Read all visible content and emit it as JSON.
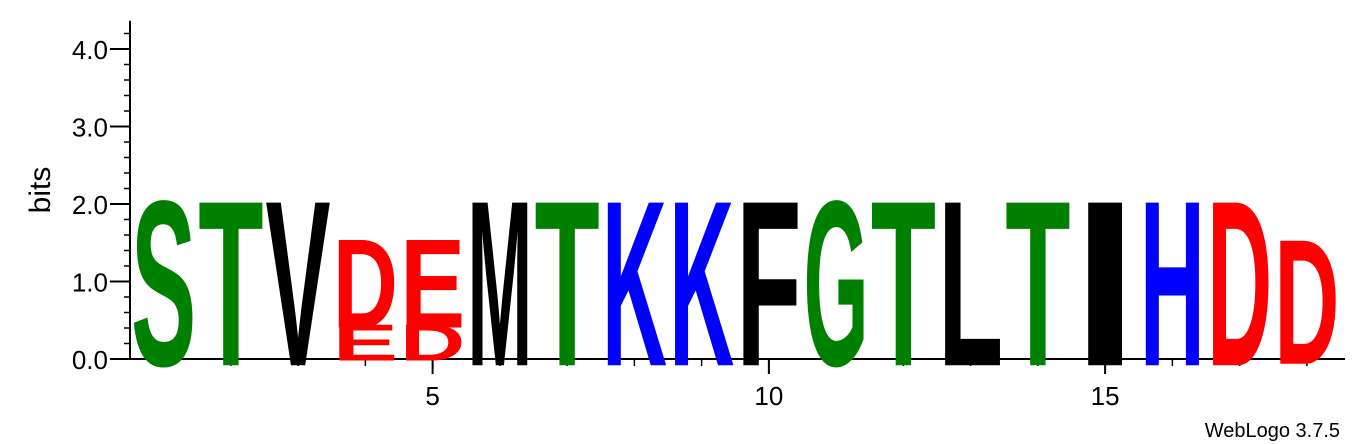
{
  "chart_data": {
    "type": "sequence-logo",
    "ylabel": "bits",
    "ylim": [
      0,
      4.3
    ],
    "xlim": [
      0.5,
      18.5
    ],
    "y_ticks": [
      {
        "value": 0,
        "label": "0.0"
      },
      {
        "value": 1,
        "label": "1.0"
      },
      {
        "value": 2,
        "label": "2.0"
      },
      {
        "value": 3,
        "label": "3.0"
      },
      {
        "value": 4,
        "label": "4.0"
      }
    ],
    "x_ticks": [
      {
        "value": 5,
        "label": "5"
      },
      {
        "value": 10,
        "label": "10"
      },
      {
        "value": 15,
        "label": "15"
      }
    ],
    "colors": {
      "green": "#008000",
      "black": "#000000",
      "red": "#ff0000",
      "blue": "#0000ff"
    },
    "positions": [
      {
        "pos": 1,
        "stack": [
          {
            "letter": "S",
            "bits": 2.05,
            "color": "#008000"
          }
        ]
      },
      {
        "pos": 2,
        "stack": [
          {
            "letter": "T",
            "bits": 2.05,
            "color": "#008000"
          }
        ]
      },
      {
        "pos": 3,
        "stack": [
          {
            "letter": "V",
            "bits": 2.05,
            "color": "#000000"
          }
        ]
      },
      {
        "pos": 4,
        "stack": [
          {
            "letter": "E",
            "bits": 0.45,
            "color": "#ff0000"
          },
          {
            "letter": "D",
            "bits": 1.1,
            "color": "#ff0000"
          }
        ]
      },
      {
        "pos": 5,
        "stack": [
          {
            "letter": "D",
            "bits": 0.45,
            "color": "#ff0000"
          },
          {
            "letter": "E",
            "bits": 1.1,
            "color": "#ff0000"
          }
        ]
      },
      {
        "pos": 6,
        "stack": [
          {
            "letter": "M",
            "bits": 2.05,
            "color": "#000000"
          }
        ]
      },
      {
        "pos": 7,
        "stack": [
          {
            "letter": "T",
            "bits": 2.05,
            "color": "#008000"
          }
        ]
      },
      {
        "pos": 8,
        "stack": [
          {
            "letter": "K",
            "bits": 2.05,
            "color": "#0000ff"
          }
        ]
      },
      {
        "pos": 9,
        "stack": [
          {
            "letter": "K",
            "bits": 2.05,
            "color": "#0000ff"
          }
        ]
      },
      {
        "pos": 10,
        "stack": [
          {
            "letter": "F",
            "bits": 2.05,
            "color": "#000000"
          }
        ]
      },
      {
        "pos": 11,
        "stack": [
          {
            "letter": "G",
            "bits": 2.05,
            "color": "#008000"
          }
        ]
      },
      {
        "pos": 12,
        "stack": [
          {
            "letter": "T",
            "bits": 2.05,
            "color": "#008000"
          }
        ]
      },
      {
        "pos": 13,
        "stack": [
          {
            "letter": "L",
            "bits": 2.05,
            "color": "#000000"
          }
        ]
      },
      {
        "pos": 14,
        "stack": [
          {
            "letter": "T",
            "bits": 2.05,
            "color": "#008000"
          }
        ]
      },
      {
        "pos": 15,
        "stack": [
          {
            "letter": "I",
            "bits": 2.05,
            "color": "#000000"
          }
        ]
      },
      {
        "pos": 16,
        "stack": [
          {
            "letter": "H",
            "bits": 2.05,
            "color": "#0000ff"
          }
        ]
      },
      {
        "pos": 17,
        "stack": [
          {
            "letter": "D",
            "bits": 2.05,
            "color": "#ff0000"
          }
        ]
      },
      {
        "pos": 18,
        "stack": [
          {
            "letter": "D",
            "bits": 1.55,
            "color": "#ff0000"
          }
        ]
      }
    ]
  },
  "footer": {
    "credit": "WebLogo 3.7.5"
  }
}
